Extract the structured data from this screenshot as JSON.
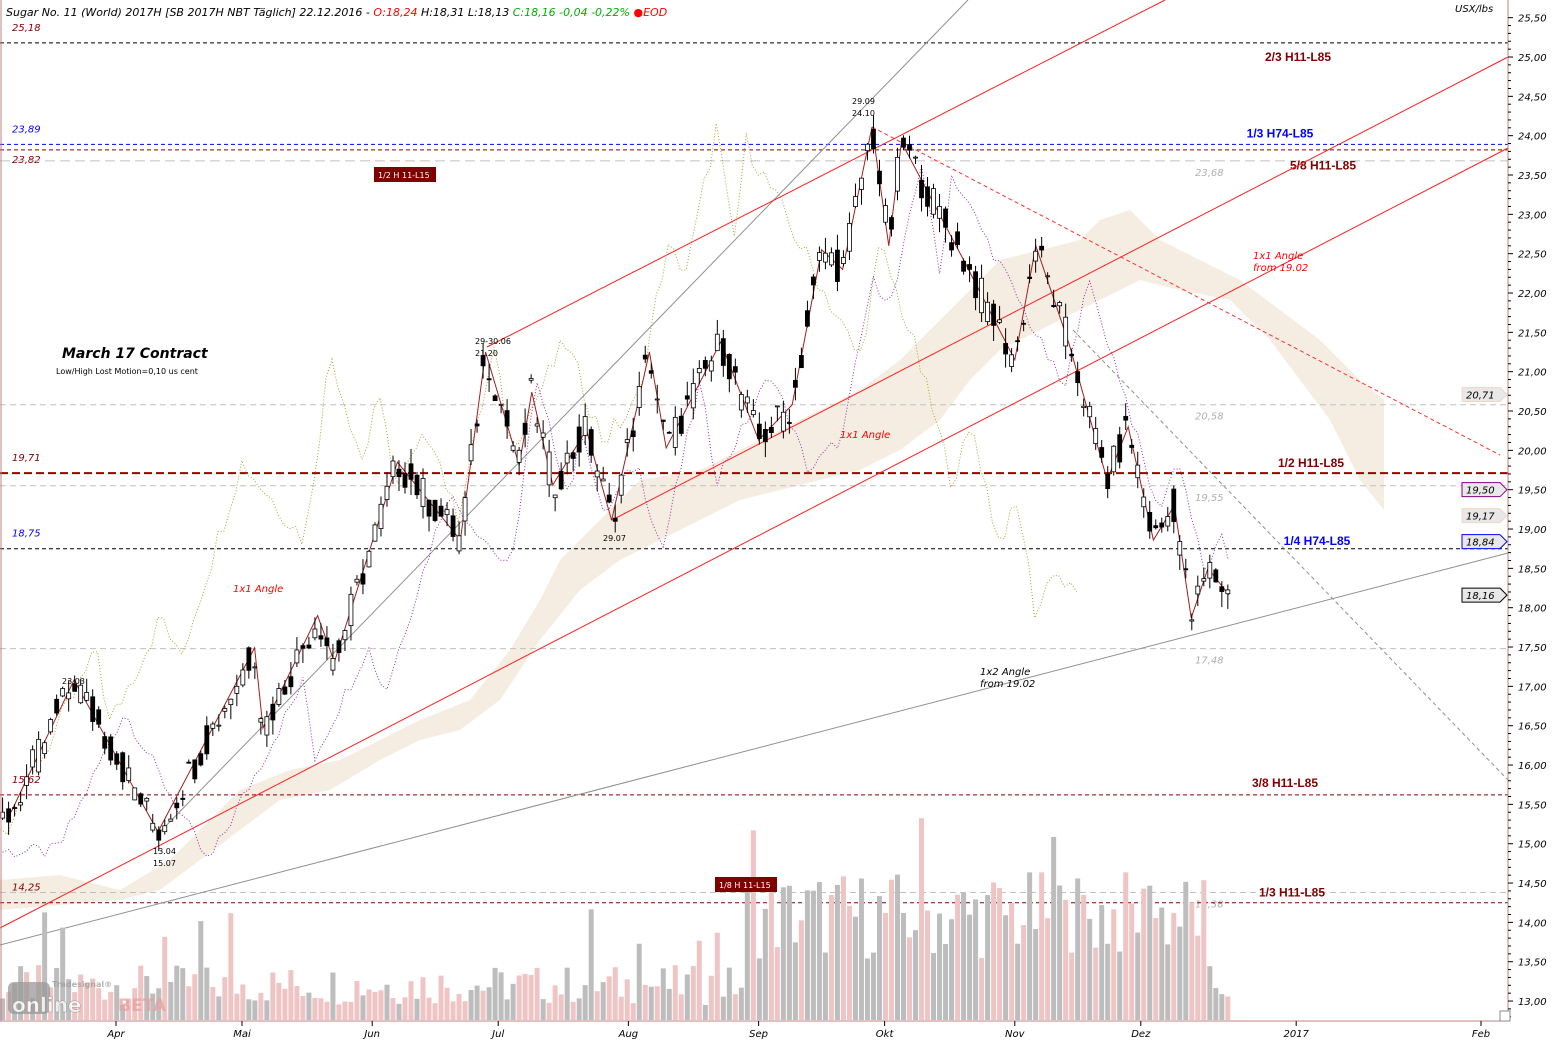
{
  "header": {
    "instrument": "Sugar No. 11 (World) 2017H [SB 2017H NBT Täglich] 22.12.2016 -",
    "open": "O:18,24",
    "high_low": "H:18,31 L:18,13",
    "close_change": "C:18,16 -0,04 -0,22%",
    "eod": "EOD",
    "unit": "USX/lbs"
  },
  "colors": {
    "darkred": "#800000",
    "blue": "#0000ff",
    "red": "#ff0000",
    "gray": "#a0a0a0",
    "cloud": "#f6ede2",
    "vol_up": "#bdbdbd",
    "vol_down": "#eec4c4"
  },
  "annotations": {
    "title": "March 17 Contract",
    "subtitle": "Low/High Lost Motion=0,10 us cent",
    "angle1": "1x1 Angle",
    "angle2": "1x1 Angle",
    "angle3a": "1x1 Angle",
    "angle3b": "from 19.02",
    "angle4a": "1x2 Angle",
    "angle4b": "from 19.02",
    "sw1": "23.03",
    "sw2a": "13.04",
    "sw2b": "15.07",
    "sw3a": "29-30.06",
    "sw3b": "21.20",
    "sw4": "29.07",
    "sw5a": "29.09",
    "sw5b": "24.10",
    "box1": "1/2 H 11-L15",
    "box2": "1/8 H 11-L15"
  },
  "levels": [
    {
      "price": 25.18,
      "left": "25,18",
      "color": "#800000",
      "dash": "4,3",
      "line": "#000"
    },
    {
      "price": 23.89,
      "left": "23,89",
      "color": "#0000ff",
      "dash": "4,3",
      "line": "#0000ff"
    },
    {
      "price": 23.82,
      "left": "23,82",
      "color": "#800000",
      "dash": "4,3",
      "line": "#800000"
    },
    {
      "price": 23.68,
      "right": "23,68",
      "color": "#b0b0b0",
      "dash": "10,5",
      "line": "#c0c0c0"
    },
    {
      "price": 20.58,
      "right": "20,58",
      "color": "#b0b0b0",
      "dash": "6,4",
      "line": "#c0c0c0"
    },
    {
      "price": 19.71,
      "left": "19,71",
      "color": "#800000",
      "dash": "8,4",
      "line": "#990000"
    },
    {
      "price": 19.55,
      "right": "19,55",
      "color": "#b0b0b0",
      "dash": "6,4",
      "line": "#c0c0c0"
    },
    {
      "price": 18.75,
      "left": "18,75",
      "color": "#0000ff",
      "dash": "4,3",
      "line": "#000"
    },
    {
      "price": 17.48,
      "right": "17,48",
      "color": "#b0b0b0",
      "dash": "6,4",
      "line": "#c0c0c0"
    },
    {
      "price": 15.62,
      "left": "15,62",
      "color": "#800000",
      "dash": "4,3",
      "line": "#800000"
    },
    {
      "price": 14.38,
      "right": "14,38",
      "color": "#b0b0b0",
      "dash": "6,4",
      "line": "#c0c0c0"
    },
    {
      "price": 14.25,
      "left": "14,25",
      "color": "#800000",
      "dash": "4,3",
      "line": "#800000"
    }
  ],
  "fib_labels": [
    {
      "text": "2/3 H11-L85",
      "price": 25.0,
      "color": "#800000",
      "x": 1298
    },
    {
      "text": "1/3 H74-L85",
      "price": 24.03,
      "color": "#0000ff",
      "x": 1280
    },
    {
      "text": "5/8 H11-L85",
      "price": 23.62,
      "color": "#800000",
      "x": 1323
    },
    {
      "text": "1/2 H11-L85",
      "price": 19.84,
      "color": "#800000",
      "x": 1311
    },
    {
      "text": "1/4 H74-L85",
      "price": 18.85,
      "color": "#0000ff",
      "x": 1317
    },
    {
      "text": "3/8 H11-L85",
      "price": 15.77,
      "color": "#800000",
      "x": 1285
    },
    {
      "text": "1/3 H11-L85",
      "price": 14.38,
      "color": "#800000",
      "x": 1292
    }
  ],
  "badges": [
    {
      "text": "20,71",
      "price": 20.71,
      "border": "#f0d8c8"
    },
    {
      "text": "19,50",
      "price": 19.5,
      "border": "#800080"
    },
    {
      "text": "19,17",
      "price": 19.17,
      "border": "#f0d8c8"
    },
    {
      "text": "18,84",
      "price": 18.84,
      "border": "#0000ff"
    },
    {
      "text": "18,16",
      "price": 18.16,
      "border": "#000000"
    }
  ],
  "logo": {
    "brand": "Tradesignal®",
    "name": "online",
    "beta": "BETA"
  },
  "chart_data": {
    "type": "candlestick",
    "title": "Sugar No. 11 (World) 2017H",
    "ylabel": "USX/lbs",
    "ylim": [
      12.75,
      25.6
    ],
    "y_ticks": [
      "13,00",
      "13,50",
      "14,00",
      "14,50",
      "15,00",
      "15,50",
      "16,00",
      "16,50",
      "17,00",
      "17,50",
      "18,00",
      "18,50",
      "19,00",
      "19,50",
      "20,00",
      "20,50",
      "21,00",
      "21,50",
      "22,00",
      "22,50",
      "23,00",
      "23,50",
      "24,00",
      "24,50",
      "25,00",
      "25,50"
    ],
    "x_ticks": [
      {
        "label": "Apr",
        "day": 0
      },
      {
        "label": "Mai",
        "day": 30
      },
      {
        "label": "Jun",
        "day": 61
      },
      {
        "label": "Jul",
        "day": 91
      },
      {
        "label": "Aug",
        "day": 122
      },
      {
        "label": "Sep",
        "day": 153
      },
      {
        "label": "Okt",
        "day": 183
      },
      {
        "label": "Nov",
        "day": 214
      },
      {
        "label": "Dez",
        "day": 244
      },
      {
        "label": "2017",
        "day": 281
      },
      {
        "label": "Feb",
        "day": 325
      }
    ],
    "day_origin": "2016-04-01",
    "swings": [
      [
        -27,
        15.3
      ],
      [
        -25,
        15.4
      ],
      [
        -10,
        17.08
      ],
      [
        10,
        15.15
      ],
      [
        33,
        17.49
      ],
      [
        35,
        16.47
      ],
      [
        48,
        17.9
      ],
      [
        52,
        17.31
      ],
      [
        67,
        19.85
      ],
      [
        82,
        18.86
      ],
      [
        88,
        21.25
      ],
      [
        96,
        19.81
      ],
      [
        99,
        20.74
      ],
      [
        104,
        19.56
      ],
      [
        112,
        20.26
      ],
      [
        118,
        19.11
      ],
      [
        127,
        21.25
      ],
      [
        131,
        20.03
      ],
      [
        144,
        21.38
      ],
      [
        153,
        20.13
      ],
      [
        161,
        20.58
      ],
      [
        168,
        22.55
      ],
      [
        173,
        22.3
      ],
      [
        180,
        24.11
      ],
      [
        184,
        22.6
      ],
      [
        187,
        23.92
      ],
      [
        202,
        22.4
      ],
      [
        214,
        21.15
      ],
      [
        219,
        22.6
      ],
      [
        227,
        21.34
      ],
      [
        236,
        19.62
      ],
      [
        241,
        20.3
      ],
      [
        247,
        18.86
      ],
      [
        252,
        19.3
      ],
      [
        256,
        17.87
      ],
      [
        260,
        18.5
      ],
      [
        265,
        18.16
      ]
    ]
  }
}
